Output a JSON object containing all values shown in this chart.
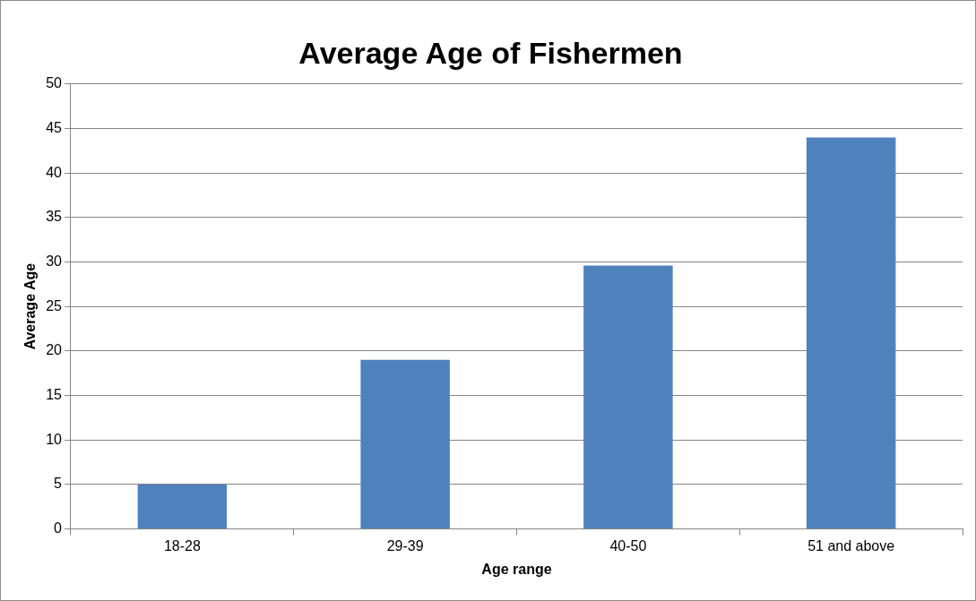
{
  "chart_data": {
    "type": "bar",
    "title": "Average Age of Fishermen",
    "xlabel": "Age range",
    "ylabel": "Average Age",
    "categories": [
      "18-28",
      "29-39",
      "40-50",
      "51 and above"
    ],
    "values": [
      5,
      19,
      29.6,
      44
    ],
    "color": "#4f81bd",
    "ylim": [
      0,
      50
    ],
    "yticks": [
      0,
      5,
      10,
      15,
      20,
      25,
      30,
      35,
      40,
      45,
      50
    ],
    "grid": "y",
    "legend": false
  }
}
